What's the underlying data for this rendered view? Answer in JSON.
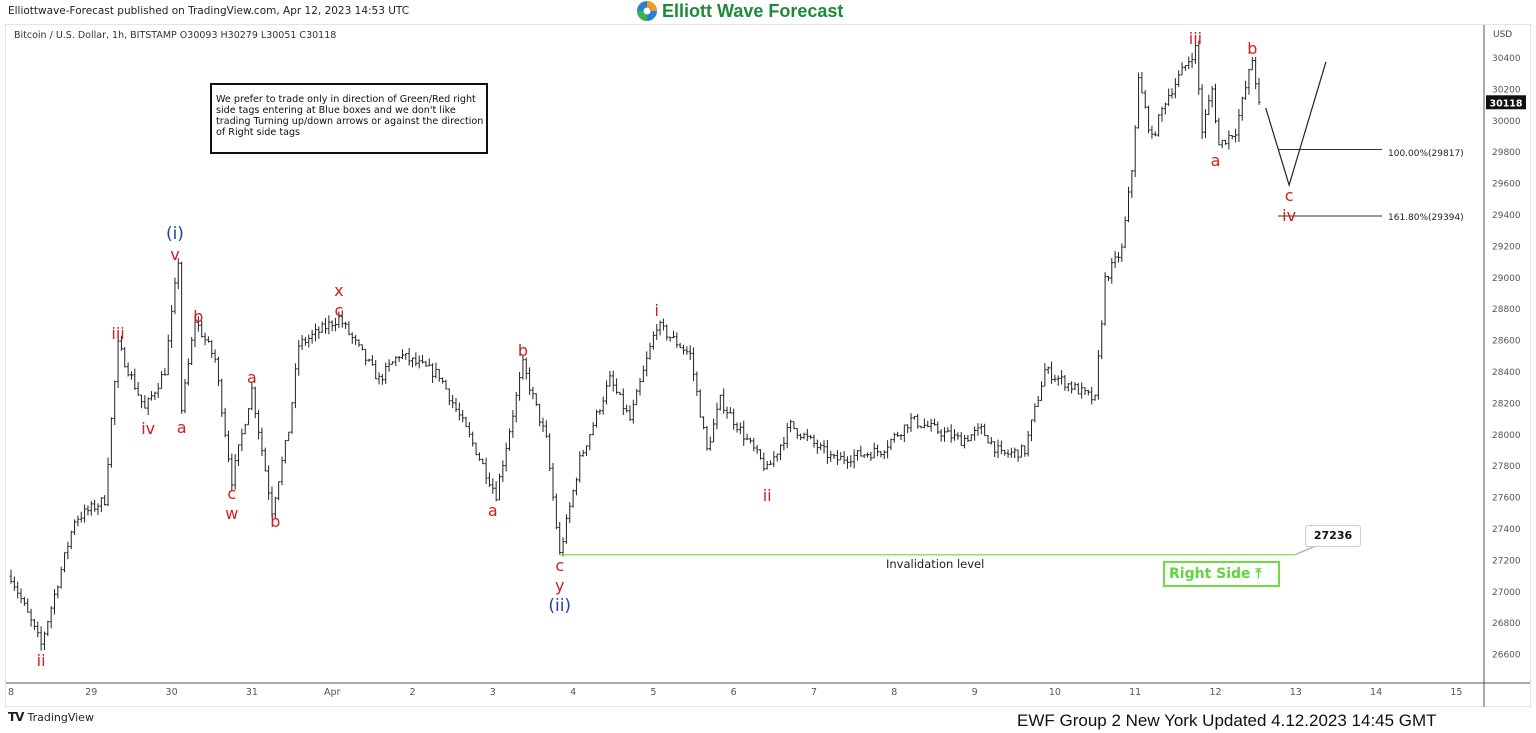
{
  "header": {
    "published": "Elliottwave-Forecast published on TradingView.com, Apr 12, 2023 14:53 UTC",
    "logo_text": "Elliott Wave Forecast",
    "symbol_line": "Bitcoin / U.S. Dollar, 1h, BITSTAMP  O30093  H30279  L30051  C30118"
  },
  "note": "We prefer to trade only in direction of Green/Red right side tags entering at Blue boxes and we don't like trading Turning up/down arrows or against the direction of Right side tags",
  "footer": {
    "brand": "TradingView",
    "updated": "EWF Group 2 New York Updated 4.12.2023 14:45 GMT"
  },
  "chart_data": {
    "type": "ohlc-bar",
    "title": "Bitcoin / U.S. Dollar, 1h, BITSTAMP",
    "currency": "USD",
    "ylim": [
      26420,
      30590
    ],
    "y_ticks": [
      26600,
      26800,
      27000,
      27200,
      27400,
      27600,
      27800,
      28000,
      28200,
      28400,
      28600,
      28800,
      29000,
      29200,
      29400,
      29600,
      29800,
      30000,
      30200,
      30400
    ],
    "x_ticks": [
      {
        "label": "8",
        "t": "Mar 28 00:00"
      },
      {
        "label": "29",
        "t": "Mar 29 00:00"
      },
      {
        "label": "30",
        "t": "Mar 30 00:00"
      },
      {
        "label": "31",
        "t": "Mar 31 00:00"
      },
      {
        "label": "Apr",
        "t": "Apr 1 00:00"
      },
      {
        "label": "2",
        "t": "Apr 2 00:00"
      },
      {
        "label": "3",
        "t": "Apr 3 00:00"
      },
      {
        "label": "4",
        "t": "Apr 4 00:00"
      },
      {
        "label": "5",
        "t": "Apr 5 00:00"
      },
      {
        "label": "6",
        "t": "Apr 6 00:00"
      },
      {
        "label": "7",
        "t": "Apr 7 00:00"
      },
      {
        "label": "8",
        "t": "Apr 8 00:00"
      },
      {
        "label": "9",
        "t": "Apr 9 00:00"
      },
      {
        "label": "10",
        "t": "Apr 10 00:00"
      },
      {
        "label": "11",
        "t": "Apr 11 00:00"
      },
      {
        "label": "12",
        "t": "Apr 12 00:00"
      },
      {
        "label": "13",
        "t": "Apr 13 00:00"
      },
      {
        "label": "14",
        "t": "Apr 14 00:00"
      },
      {
        "label": "15",
        "t": "Apr 15 00:00"
      }
    ],
    "last_price": "30118",
    "price_path": [
      [
        "Mar 28 00:00",
        27100
      ],
      [
        "Mar 28 09:00",
        26661
      ],
      [
        "Mar 28 19:00",
        27460
      ],
      [
        "Mar 29 04:00",
        27585
      ],
      [
        "Mar 29 06:00",
        28095
      ],
      [
        "Mar 29 08:00",
        28570
      ],
      [
        "Mar 29 16:00",
        28160
      ],
      [
        "Mar 29 22:00",
        28410
      ],
      [
        "Mar 30 02:00",
        29110
      ],
      [
        "Mar 30 03:00",
        28160
      ],
      [
        "Mar 30 07:00",
        28730
      ],
      [
        "Mar 30 13:00",
        28480
      ],
      [
        "Mar 30 18:00",
        27710
      ],
      [
        "Mar 31 00:00",
        28290
      ],
      [
        "Mar 31 06:00",
        27520
      ],
      [
        "Mar 31 11:00",
        28030
      ],
      [
        "Mar 31 14:00",
        28570
      ],
      [
        "Apr 1 02:00",
        28745
      ],
      [
        "Apr 1 14:00",
        28350
      ],
      [
        "Apr 1 20:00",
        28510
      ],
      [
        "Apr 2 08:00",
        28380
      ],
      [
        "Apr 2 19:00",
        27900
      ],
      [
        "Apr 3 01:00",
        27620
      ],
      [
        "Apr 3 09:00",
        28445
      ],
      [
        "Apr 3 16:00",
        27965
      ],
      [
        "Apr 3 20:00",
        27236
      ],
      [
        "Apr 4 02:00",
        27840
      ],
      [
        "Apr 4 11:00",
        28350
      ],
      [
        "Apr 4 17:00",
        28095
      ],
      [
        "Apr 5 01:00",
        28700
      ],
      [
        "Apr 5 11:00",
        28510
      ],
      [
        "Apr 5 16:00",
        27900
      ],
      [
        "Apr 5 20:00",
        28220
      ],
      [
        "Apr 6 10:00",
        27775
      ],
      [
        "Apr 6 17:00",
        28060
      ],
      [
        "Apr 7 06:00",
        27840
      ],
      [
        "Apr 7 20:00",
        27900
      ],
      [
        "Apr 8 05:00",
        28095
      ],
      [
        "Apr 8 20:00",
        27965
      ],
      [
        "Apr 9 02:00",
        28030
      ],
      [
        "Apr 9 08:00",
        27870
      ],
      [
        "Apr 9 15:00",
        27900
      ],
      [
        "Apr 9 21:00",
        28410
      ],
      [
        "Apr 10 12:00",
        28220
      ],
      [
        "Apr 10 15:00",
        28990
      ],
      [
        "Apr 10 20:00",
        29180
      ],
      [
        "Apr 10 23:00",
        29690
      ],
      [
        "Apr 11 01:00",
        30260
      ],
      [
        "Apr 11 05:00",
        29880
      ],
      [
        "Apr 11 09:00",
        30130
      ],
      [
        "Apr 11 18:00",
        30460
      ],
      [
        "Apr 11 20:00",
        29940
      ],
      [
        "Apr 11 23:00",
        30200
      ],
      [
        "Apr 12 01:00",
        29845
      ],
      [
        "Apr 12 06:00",
        29940
      ],
      [
        "Apr 12 11:00",
        30390
      ],
      [
        "Apr 12 13:00",
        30118
      ]
    ],
    "wave_labels": [
      {
        "text": "ii",
        "color": "#d0201f",
        "t": "Mar 28 09:00",
        "p": 26566
      },
      {
        "text": "iii",
        "color": "#d0201f",
        "t": "Mar 29 08:00",
        "p": 28648
      },
      {
        "text": "iv",
        "color": "#d0201f",
        "t": "Mar 29 17:00",
        "p": 28043
      },
      {
        "text": "(i)",
        "color": "#1f3fb0",
        "t": "Mar 30 01:00",
        "p": 29285
      },
      {
        "text": "v",
        "color": "#d0201f",
        "t": "Mar 30 01:00",
        "p": 29171
      },
      {
        "text": "a",
        "color": "#d0201f",
        "t": "Mar 30 03:00",
        "p": 28050
      },
      {
        "text": "b",
        "color": "#d0201f",
        "t": "Mar 30 08:00",
        "p": 28757
      },
      {
        "text": "a",
        "color": "#d0201f",
        "t": "Mar 31 00:00",
        "p": 28368
      },
      {
        "text": "c",
        "color": "#d0201f",
        "t": "Mar 30 18:00",
        "p": 27630
      },
      {
        "text": "w",
        "color": "#d0201f",
        "t": "Mar 30 18:00",
        "p": 27521
      },
      {
        "text": "b",
        "color": "#d0201f",
        "t": "Mar 31 07:00",
        "p": 27451
      },
      {
        "text": "x",
        "color": "#d0201f",
        "t": "Apr 1 02:00",
        "p": 28922
      },
      {
        "text": "c",
        "color": "#d0201f",
        "t": "Apr 1 02:00",
        "p": 28814
      },
      {
        "text": "b",
        "color": "#d0201f",
        "t": "Apr 3 09:00",
        "p": 28540
      },
      {
        "text": "a",
        "color": "#d0201f",
        "t": "Apr 3 00:00",
        "p": 27521
      },
      {
        "text": "c",
        "color": "#d0201f",
        "t": "Apr 3 20:00",
        "p": 27171
      },
      {
        "text": "y",
        "color": "#d0201f",
        "t": "Apr 3 20:00",
        "p": 27088
      },
      {
        "text": "(ii)",
        "color": "#1f3fb0",
        "t": "Apr 3 20:00",
        "p": 26948
      },
      {
        "text": "i",
        "color": "#d0201f",
        "t": "Apr 5 01:00",
        "p": 28795
      },
      {
        "text": "ii",
        "color": "#d0201f",
        "t": "Apr 6 10:00",
        "p": 27617
      },
      {
        "text": "iii",
        "color": "#d0201f",
        "t": "Apr 11 18:00",
        "p": 30527
      },
      {
        "text": "b",
        "color": "#d0201f",
        "t": "Apr 12 11:00",
        "p": 30464
      },
      {
        "text": "a",
        "color": "#d0201f",
        "t": "Apr 12 00:00",
        "p": 29750
      },
      {
        "text": "c",
        "color": "#d0201f",
        "t": "Apr 12 22:00",
        "p": 29527
      },
      {
        "text": "iv",
        "color": "#d0201f",
        "t": "Apr 12 22:00",
        "p": 29413
      }
    ],
    "projection": [
      [
        "Apr 12 15:00",
        30082
      ],
      [
        "Apr 12 22:00",
        29591
      ],
      [
        "Apr 13 09:00",
        30375
      ]
    ],
    "fib_levels": [
      {
        "label": "100.00%(29817)",
        "p": 29817
      },
      {
        "label": "161.80%(29394)",
        "p": 29394
      }
    ],
    "invalidation": {
      "label": "Invalidation level",
      "value": "27236",
      "p": 27236,
      "from": "Apr 3 20:00",
      "to": "Apr 13 00:00",
      "color": "#7ddc4a"
    },
    "right_side_tag": {
      "label": "Right Side",
      "arrow": "up-arrow",
      "color": "#5fd63a"
    }
  }
}
